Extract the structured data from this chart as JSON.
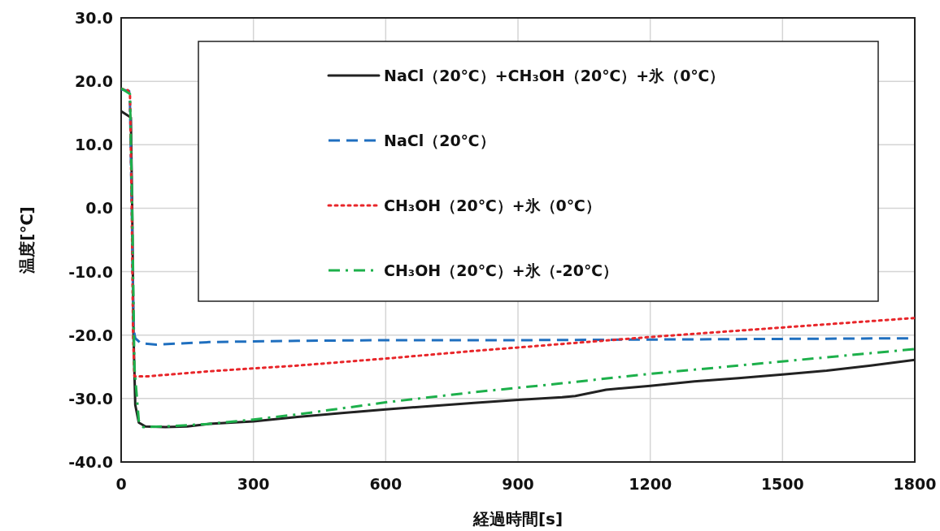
{
  "chart_data": {
    "type": "line",
    "xlabel": "経過時間[s]",
    "ylabel": "温度[℃]",
    "xlim": [
      0,
      1800
    ],
    "xticks": [
      0,
      300,
      600,
      900,
      1200,
      1500,
      1800
    ],
    "ylim": [
      -40,
      30
    ],
    "yticks": [
      {
        "value": -40,
        "label": "-40.0"
      },
      {
        "value": -30,
        "label": "-30.0"
      },
      {
        "value": -20,
        "label": "-20.0"
      },
      {
        "value": -10,
        "label": "-10.0"
      },
      {
        "value": 0,
        "label": "0.0"
      },
      {
        "value": 10,
        "label": "10.0"
      },
      {
        "value": 20,
        "label": "20.0"
      },
      {
        "value": 30,
        "label": "30.0"
      }
    ],
    "grid": true,
    "legend": "top right",
    "marker": "none",
    "series": [
      {
        "name": "NaCl（20℃）+CH₃OH（20℃）+氷（0℃）",
        "color": "#222222",
        "line_style": "solid",
        "x": [
          0,
          15,
          22,
          25,
          28,
          32,
          40,
          55,
          100,
          150,
          200,
          300,
          400,
          500,
          600,
          700,
          800,
          900,
          1000,
          1030,
          1100,
          1200,
          1300,
          1400,
          1500,
          1600,
          1700,
          1800
        ],
        "values": [
          15.3,
          14.6,
          14.3,
          0,
          -20,
          -31,
          -33.8,
          -34.4,
          -34.5,
          -34.4,
          -34.0,
          -33.6,
          -32.9,
          -32.3,
          -31.7,
          -31.2,
          -30.7,
          -30.2,
          -29.8,
          -29.6,
          -28.6,
          -28.0,
          -27.3,
          -26.8,
          -26.2,
          -25.6,
          -24.8,
          -23.9
        ]
      },
      {
        "name": "NaCl（20℃）",
        "color": "#1f6fbf",
        "line_style": "dashed",
        "x": [
          0,
          18,
          20,
          24,
          28,
          32,
          45,
          80,
          200,
          400,
          600,
          900,
          1200,
          1500,
          1800
        ],
        "values": [
          18.7,
          18.5,
          16.5,
          0,
          -19,
          -20.5,
          -21.3,
          -21.5,
          -21.1,
          -20.9,
          -20.8,
          -20.8,
          -20.7,
          -20.6,
          -20.5
        ]
      },
      {
        "name": "CH₃OH（20℃）+氷（0℃）",
        "color": "#e8262a",
        "line_style": "dotted",
        "x": [
          0,
          15,
          20,
          24,
          27,
          30,
          60,
          200,
          400,
          600,
          800,
          1000,
          1200,
          1400,
          1600,
          1800
        ],
        "values": [
          18.8,
          18.6,
          18.0,
          0,
          -20,
          -26.5,
          -26.5,
          -25.7,
          -24.8,
          -23.7,
          -22.5,
          -21.4,
          -20.3,
          -19.3,
          -18.3,
          -17.3
        ]
      },
      {
        "name": "CH₃OH（20℃）+氷（-20℃）",
        "color": "#1db04b",
        "line_style": "dashdot",
        "x": [
          0,
          20,
          25,
          30,
          40,
          50,
          100,
          200,
          300,
          400,
          600,
          800,
          900,
          1000,
          1200,
          1400,
          1600,
          1800
        ],
        "values": [
          18.9,
          18.0,
          0,
          -25,
          -33.5,
          -34.5,
          -34.4,
          -34.0,
          -33.3,
          -32.5,
          -30.6,
          -29.0,
          -28.3,
          -27.6,
          -26.1,
          -24.8,
          -23.5,
          -22.2
        ]
      }
    ]
  }
}
